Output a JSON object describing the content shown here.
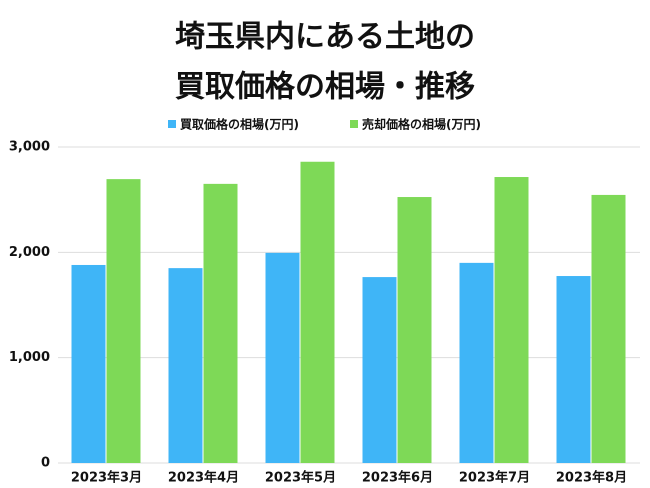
{
  "chart_data": {
    "type": "bar",
    "title": [
      "埼玉県内にある土地の",
      "買取価格の相場・推移"
    ],
    "categories": [
      "2023年3月",
      "2023年4月",
      "2023年5月",
      "2023年6月",
      "2023年7月",
      "2023年8月"
    ],
    "series": [
      {
        "name": "買取価格の相場(万円)",
        "color": "#3fb5f7",
        "values": [
          1880,
          1850,
          1995,
          1765,
          1900,
          1775
        ]
      },
      {
        "name": "売却価格の相場(万円)",
        "color": "#7ed957",
        "values": [
          2695,
          2650,
          2860,
          2525,
          2715,
          2545
        ]
      }
    ],
    "ylim": [
      0,
      3000
    ],
    "yticks": [
      0,
      {
        "value": 1000,
        "label": "1,000"
      },
      {
        "value": 2000,
        "label": "2,000"
      },
      {
        "value": 3000,
        "label": "3,000"
      }
    ],
    "grid": true
  }
}
